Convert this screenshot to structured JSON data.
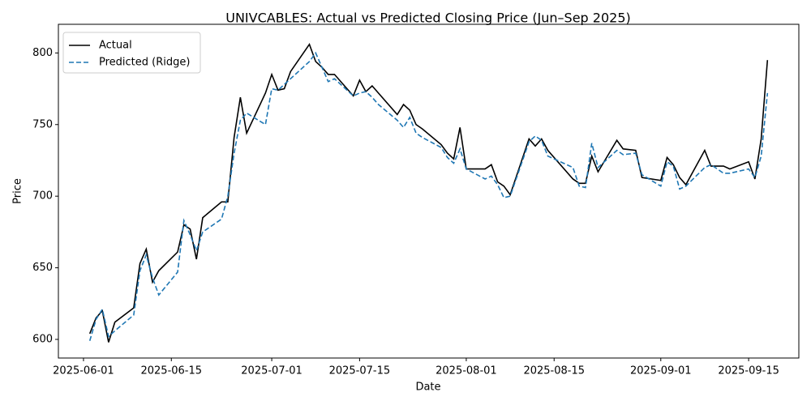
{
  "chart_data": {
    "type": "line",
    "title": "UNIVCABLES: Actual vs Predicted Closing Price (Jun–Sep 2025)",
    "xlabel": "Date",
    "ylabel": "Price",
    "x": [
      "2025-06-02",
      "2025-06-03",
      "2025-06-04",
      "2025-06-05",
      "2025-06-06",
      "2025-06-09",
      "2025-06-10",
      "2025-06-11",
      "2025-06-12",
      "2025-06-13",
      "2025-06-16",
      "2025-06-17",
      "2025-06-18",
      "2025-06-19",
      "2025-06-20",
      "2025-06-23",
      "2025-06-24",
      "2025-06-25",
      "2025-06-26",
      "2025-06-27",
      "2025-06-30",
      "2025-07-01",
      "2025-07-02",
      "2025-07-03",
      "2025-07-04",
      "2025-07-07",
      "2025-07-08",
      "2025-07-09",
      "2025-07-10",
      "2025-07-11",
      "2025-07-14",
      "2025-07-15",
      "2025-07-16",
      "2025-07-17",
      "2025-07-18",
      "2025-07-21",
      "2025-07-22",
      "2025-07-23",
      "2025-07-24",
      "2025-07-25",
      "2025-07-28",
      "2025-07-29",
      "2025-07-30",
      "2025-07-31",
      "2025-08-01",
      "2025-08-04",
      "2025-08-05",
      "2025-08-06",
      "2025-08-07",
      "2025-08-08",
      "2025-08-11",
      "2025-08-12",
      "2025-08-13",
      "2025-08-14",
      "2025-08-18",
      "2025-08-19",
      "2025-08-20",
      "2025-08-21",
      "2025-08-22",
      "2025-08-25",
      "2025-08-26",
      "2025-08-28",
      "2025-08-29",
      "2025-09-01",
      "2025-09-02",
      "2025-09-03",
      "2025-09-04",
      "2025-09-05",
      "2025-09-08",
      "2025-09-09",
      "2025-09-10",
      "2025-09-11",
      "2025-09-12",
      "2025-09-15",
      "2025-09-16",
      "2025-09-17",
      "2025-09-18"
    ],
    "series": [
      {
        "name": "Actual",
        "color": "#000000",
        "linestyle": "solid",
        "values": [
          604,
          615,
          620,
          598,
          612,
          622,
          653,
          663,
          640,
          648,
          661,
          680,
          677,
          656,
          685,
          696,
          696,
          741,
          769,
          744,
          772,
          785,
          774,
          775,
          787,
          806,
          794,
          790,
          785,
          785,
          770,
          781,
          773,
          777,
          772,
          757,
          764,
          760,
          750,
          747,
          736,
          730,
          726,
          748,
          719,
          719,
          722,
          710,
          707,
          701,
          740,
          735,
          740,
          732,
          712,
          709,
          709,
          728,
          717,
          739,
          733,
          732,
          713,
          711,
          727,
          722,
          713,
          708,
          732,
          721,
          721,
          721,
          719,
          724,
          712,
          740,
          795
        ]
      },
      {
        "name": "Predicted (Ridge)",
        "color": "#1f77b4",
        "linestyle": "dashed",
        "values": [
          599,
          614,
          621,
          602,
          606,
          617,
          648,
          659,
          643,
          631,
          647,
          683,
          673,
          662,
          675,
          684,
          700,
          730,
          753,
          758,
          750,
          775,
          774,
          778,
          782,
          794,
          800,
          790,
          780,
          782,
          770,
          772,
          773,
          769,
          764,
          753,
          748,
          755,
          744,
          741,
          734,
          727,
          723,
          733,
          719,
          712,
          714,
          708,
          699,
          700,
          738,
          742,
          739,
          728,
          720,
          707,
          706,
          737,
          720,
          732,
          729,
          730,
          715,
          707,
          724,
          721,
          705,
          707,
          720,
          722,
          719,
          716,
          716,
          719,
          713,
          728,
          772
        ]
      }
    ],
    "xlim": [
      "2025-05-28",
      "2025-09-23"
    ],
    "xticks": [
      "2025-06-01",
      "2025-06-15",
      "2025-07-01",
      "2025-07-15",
      "2025-08-01",
      "2025-08-15",
      "2025-09-01",
      "2025-09-15"
    ],
    "ylim": [
      587,
      820
    ],
    "yticks": [
      600,
      650,
      700,
      750,
      800
    ],
    "grid": false,
    "legend": "upper left"
  }
}
